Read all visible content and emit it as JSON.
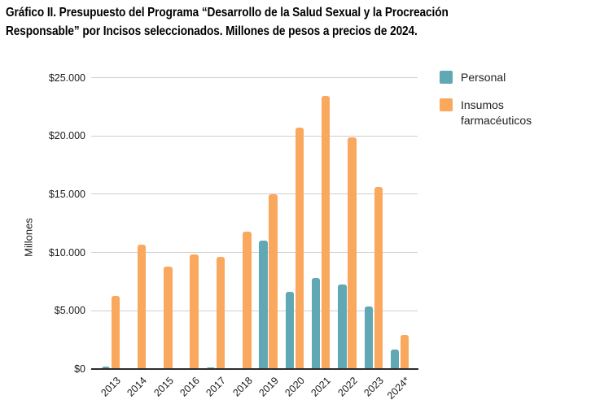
{
  "title": {
    "lines": [
      "Gráfico II. Presupuesto del Programa “Desarrollo de la Salud Sexual y la Procreación",
      "Responsable” por Incisos seleccionados. Millones de pesos a precios de 2024."
    ]
  },
  "chart_data": {
    "type": "bar",
    "title": "Gráfico II. Presupuesto del Programa “Desarrollo de la Salud Sexual y la Procreación Responsable” por Incisos seleccionados. Millones de pesos a precios de 2024.",
    "categories": [
      "2013",
      "2014",
      "2015",
      "2016",
      "2017",
      "2018",
      "2019",
      "2020",
      "2021",
      "2022",
      "2023",
      "2024*"
    ],
    "series": [
      {
        "name": "Personal",
        "color": "#5fa8b4",
        "values": [
          200,
          0,
          0,
          0,
          150,
          0,
          11000,
          6650,
          7800,
          7250,
          5350,
          1700
        ]
      },
      {
        "name": "Insumos farmacéuticos",
        "color": "#faa85e",
        "values": [
          6250,
          10650,
          8800,
          9800,
          9600,
          11800,
          15000,
          20700,
          23450,
          19850,
          15600,
          2900
        ]
      }
    ],
    "xlabel": "",
    "ylabel": "Millones",
    "ylim": [
      0,
      25000
    ],
    "yticks": [
      0,
      5000,
      10000,
      15000,
      20000,
      25000
    ],
    "ytick_labels": [
      "$0",
      "$5.000",
      "$10.000",
      "$15.000",
      "$20.000",
      "$25.000"
    ],
    "grid": true,
    "legend_position": "top-right"
  },
  "colors": {
    "personal": "#5fa8b4",
    "insumos": "#faa85e",
    "gridline": "#cfcfcf",
    "axis_line": "#2b2b2b",
    "text": "#1a1a1a"
  }
}
